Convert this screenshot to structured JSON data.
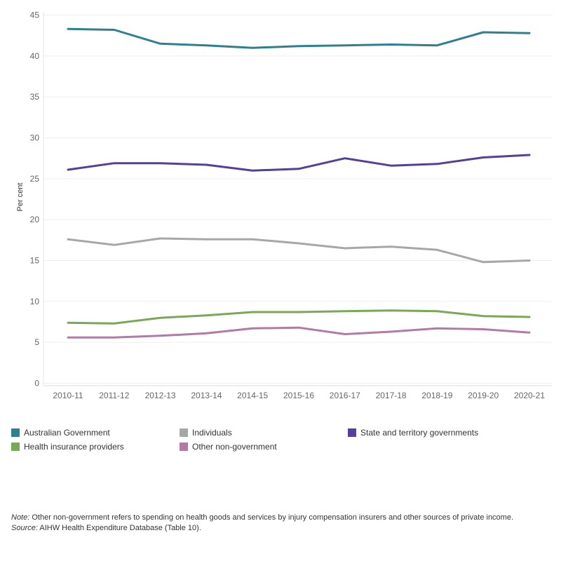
{
  "chart_data": {
    "type": "line",
    "categories": [
      "2010-11",
      "2011-12",
      "2012-13",
      "2013-14",
      "2014-15",
      "2015-16",
      "2016-17",
      "2017-18",
      "2018-19",
      "2019-20",
      "2020-21"
    ],
    "series": [
      {
        "name": "Australian Government",
        "color": "#2e7f92",
        "values": [
          43.3,
          43.2,
          41.5,
          41.3,
          41.0,
          41.2,
          41.3,
          41.4,
          41.3,
          42.9,
          42.8
        ]
      },
      {
        "name": "State and territory governments",
        "color": "#553f99",
        "values": [
          26.1,
          26.9,
          26.9,
          26.7,
          26.0,
          26.2,
          27.5,
          26.6,
          26.8,
          27.6,
          27.9
        ]
      },
      {
        "name": "Individuals",
        "color": "#a6a8a7",
        "values": [
          17.6,
          16.9,
          17.7,
          17.6,
          17.6,
          17.1,
          16.5,
          16.7,
          16.3,
          14.8,
          15.0
        ]
      },
      {
        "name": "Health insurance providers",
        "color": "#77a956",
        "values": [
          7.4,
          7.3,
          8.0,
          8.3,
          8.7,
          8.7,
          8.8,
          8.9,
          8.8,
          8.2,
          8.1
        ]
      },
      {
        "name": "Other non-government",
        "color": "#b37aa5",
        "values": [
          5.6,
          5.6,
          5.8,
          6.1,
          6.7,
          6.8,
          6.0,
          6.3,
          6.7,
          6.6,
          6.2
        ]
      }
    ],
    "ylabel": "Per cent",
    "ylim": [
      0,
      45
    ],
    "yticks": [
      0,
      5,
      10,
      15,
      20,
      25,
      30,
      35,
      40,
      45
    ],
    "grid": true,
    "legend_placement": "bottom"
  },
  "legend": {
    "items": [
      {
        "label": "Australian Government",
        "color": "#2e7f92"
      },
      {
        "label": "Individuals",
        "color": "#a6a8a7"
      },
      {
        "label": "State and territory governments",
        "color": "#553f99"
      },
      {
        "label": "Health insurance providers",
        "color": "#77a956"
      },
      {
        "label": "Other non-government",
        "color": "#b37aa5"
      }
    ]
  },
  "footnote": {
    "note_label": "Note:",
    "note_text": " Other non-government refers to spending on health goods and services by injury compensation insurers and other sources of private income.",
    "source_label": "Source:",
    "source_text": " AIHW Health Expenditure Database (Table 10)."
  }
}
